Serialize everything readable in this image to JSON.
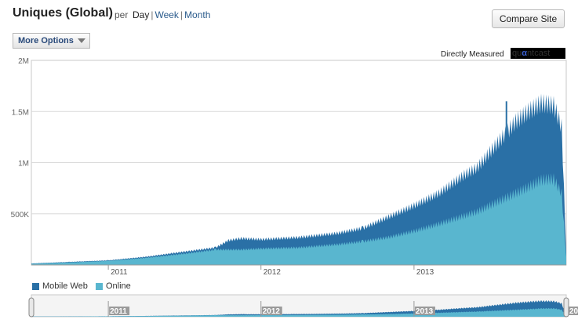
{
  "header": {
    "title": "Uniques (Global)",
    "per": "per",
    "periods": [
      "Day",
      "Week",
      "Month"
    ],
    "selected_period": "Day",
    "compare_button": "Compare Site",
    "more_options": "More Options",
    "directly_measured": "Directly Measured",
    "logo_text": "quantcast"
  },
  "colors": {
    "mobile_web": "#2a70a6",
    "online": "#59b6cf"
  },
  "chart_data": {
    "type": "area",
    "stacked": true,
    "y_ticks": [
      {
        "value": 500000,
        "label": "500K"
      },
      {
        "value": 1000000,
        "label": "1M"
      },
      {
        "value": 1500000,
        "label": "1.5M"
      },
      {
        "value": 2000000,
        "label": "2M"
      }
    ],
    "ylim": [
      0,
      2000000
    ],
    "xlim": [
      "2010-07-01",
      "2013-12-31"
    ],
    "x_ticks": [
      {
        "date": "2011-01-01",
        "label": "2011"
      },
      {
        "date": "2012-01-01",
        "label": "2012"
      },
      {
        "date": "2013-01-01",
        "label": "2013"
      }
    ],
    "grid": true,
    "legend_position": "bottom-left",
    "series": [
      {
        "name": "Mobile Web",
        "points": [
          [
            "2010-07-01",
            15000
          ],
          [
            "2010-10-01",
            30000
          ],
          [
            "2011-01-01",
            45000
          ],
          [
            "2011-04-01",
            80000
          ],
          [
            "2011-07-01",
            130000
          ],
          [
            "2011-09-15",
            170000
          ],
          [
            "2011-10-15",
            240000
          ],
          [
            "2011-11-15",
            260000
          ],
          [
            "2012-01-01",
            250000
          ],
          [
            "2012-04-01",
            270000
          ],
          [
            "2012-07-01",
            310000
          ],
          [
            "2012-09-01",
            360000
          ],
          [
            "2012-11-01",
            470000
          ],
          [
            "2013-01-01",
            580000
          ],
          [
            "2013-03-01",
            700000
          ],
          [
            "2013-05-01",
            880000
          ],
          [
            "2013-06-01",
            950000
          ],
          [
            "2013-07-01",
            1100000
          ],
          [
            "2013-08-01",
            1250000
          ],
          [
            "2013-09-01",
            1400000
          ],
          [
            "2013-10-01",
            1500000
          ],
          [
            "2013-11-01",
            1580000
          ],
          [
            "2013-12-01",
            1560000
          ],
          [
            "2013-12-20",
            1350000
          ],
          [
            "2013-12-31",
            120000
          ]
        ]
      },
      {
        "name": "Online",
        "points": [
          [
            "2010-07-01",
            12000
          ],
          [
            "2010-10-01",
            25000
          ],
          [
            "2011-01-01",
            40000
          ],
          [
            "2011-04-01",
            70000
          ],
          [
            "2011-07-01",
            110000
          ],
          [
            "2011-09-15",
            150000
          ],
          [
            "2011-10-15",
            150000
          ],
          [
            "2011-11-15",
            150000
          ],
          [
            "2012-01-01",
            160000
          ],
          [
            "2012-04-01",
            170000
          ],
          [
            "2012-07-01",
            200000
          ],
          [
            "2012-09-01",
            230000
          ],
          [
            "2012-11-01",
            270000
          ],
          [
            "2013-01-01",
            330000
          ],
          [
            "2013-03-01",
            400000
          ],
          [
            "2013-05-01",
            480000
          ],
          [
            "2013-06-01",
            520000
          ],
          [
            "2013-07-01",
            580000
          ],
          [
            "2013-08-01",
            640000
          ],
          [
            "2013-09-01",
            700000
          ],
          [
            "2013-10-01",
            760000
          ],
          [
            "2013-11-01",
            830000
          ],
          [
            "2013-12-01",
            840000
          ],
          [
            "2013-12-20",
            700000
          ],
          [
            "2013-12-31",
            80000
          ]
        ]
      }
    ],
    "navigator_labels": [
      "2011",
      "2012",
      "2013",
      "20"
    ]
  }
}
